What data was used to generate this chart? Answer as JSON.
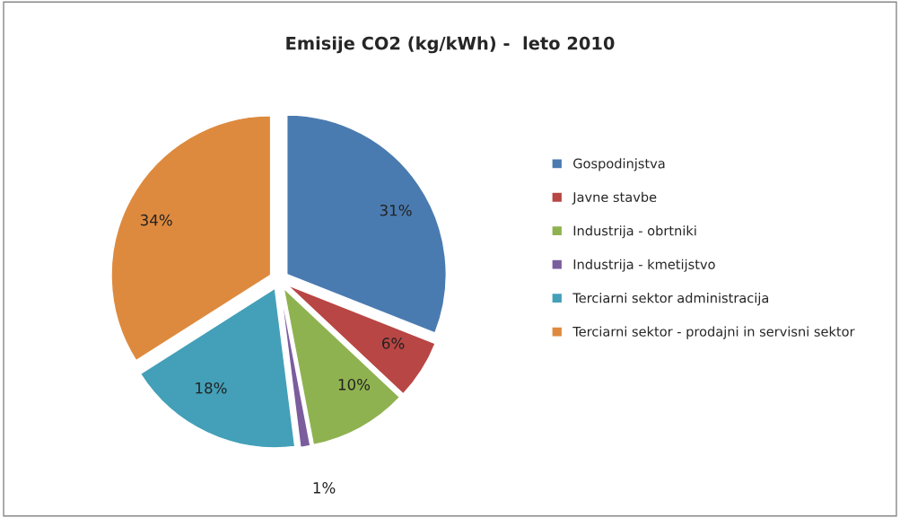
{
  "chart_data": {
    "type": "pie",
    "title": "Emisije CO2 (kg/kWh) -  leto 2010",
    "categories": [
      "Gospodinjstva",
      "Javne stavbe",
      "Industrija - obrtniki",
      "Industrija - kmetijstvo",
      "Terciarni sektor administracija",
      "Terciarni sektor - prodajni in servisni sektor"
    ],
    "values": [
      31,
      6,
      10,
      1,
      18,
      34
    ],
    "colors": [
      "#4a7bb0",
      "#b84644",
      "#8fb250",
      "#7b5d9d",
      "#43a0b8",
      "#de8a3e"
    ],
    "value_labels": [
      "31%",
      "6%",
      "10%",
      "1%",
      "18%",
      "34%"
    ],
    "legend": "right"
  }
}
